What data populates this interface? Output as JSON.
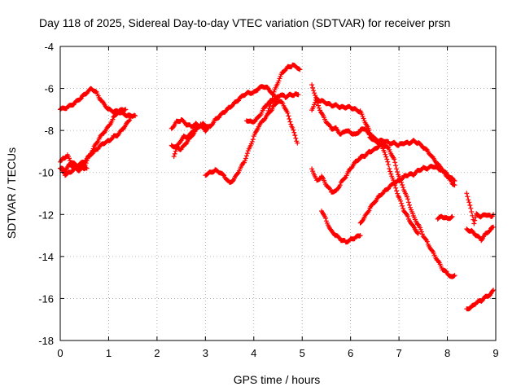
{
  "chart_data": {
    "type": "scatter",
    "title": "Day 118 of 2025, Sidereal Day-to-day VTEC variation (SDTVAR) for receiver prsn",
    "xlabel": "GPS time / hours",
    "ylabel": "SDTVAR / TECUs",
    "xlim": [
      0,
      9
    ],
    "ylim": [
      -18,
      -4
    ],
    "x_ticks": [
      "0",
      "1",
      "2",
      "3",
      "4",
      "5",
      "6",
      "7",
      "8",
      "9"
    ],
    "y_ticks": [
      "-18",
      "-16",
      "-14",
      "-12",
      "-10",
      "-8",
      "-6",
      "-4"
    ],
    "grid": true,
    "marker": "plus",
    "color": "#ff0000",
    "series": [
      {
        "name": "s1",
        "x": [
          0,
          0.15,
          0.3,
          0.45,
          0.55,
          0.65,
          0.75,
          0.85,
          1.0,
          1.1,
          1.2,
          1.3,
          1.4,
          1.5,
          1.55
        ],
        "y": [
          -7.0,
          -6.9,
          -6.7,
          -6.4,
          -6.2,
          -6.0,
          -6.2,
          -6.6,
          -7.0,
          -7.1,
          -7.1,
          -7.2,
          -7.3,
          -7.3,
          -7.3
        ]
      },
      {
        "name": "s2",
        "x": [
          0,
          0.1,
          0.2,
          0.3,
          0.4,
          0.5,
          0.6,
          0.7,
          0.8,
          0.9,
          1.0,
          1.1,
          1.2,
          1.3,
          1.35
        ],
        "y": [
          -9.8,
          -9.9,
          -9.6,
          -9.8,
          -9.9,
          -9.7,
          -9.2,
          -8.8,
          -8.4,
          -8.1,
          -7.8,
          -7.4,
          -7.1,
          -7.0,
          -7.0
        ]
      },
      {
        "name": "s3",
        "x": [
          0,
          0.08,
          0.15,
          0.22,
          0.3,
          0.4,
          0.5,
          0.55
        ],
        "y": [
          -9.5,
          -9.3,
          -9.2,
          -9.5,
          -9.6,
          -9.7,
          -9.8,
          -9.8
        ]
      },
      {
        "name": "s4",
        "x": [
          0,
          0.1,
          0.2,
          0.3,
          0.4,
          0.5,
          0.6,
          0.7,
          0.8,
          0.9,
          1.0,
          1.1,
          1.2,
          1.3,
          1.4,
          1.45
        ],
        "y": [
          -9.8,
          -10.1,
          -10.0,
          -9.8,
          -9.6,
          -9.5,
          -9.2,
          -9.0,
          -8.8,
          -8.6,
          -8.5,
          -8.3,
          -8.2,
          -7.9,
          -7.6,
          -7.4
        ]
      },
      {
        "name": "s5",
        "x": [
          2.3,
          2.4,
          2.5,
          2.6,
          2.7,
          2.8,
          2.9,
          3.0,
          3.1,
          3.2,
          3.3,
          3.4,
          3.5,
          3.6,
          3.7,
          3.8,
          3.9,
          4.0,
          4.1,
          4.2,
          4.3,
          4.4,
          4.5
        ],
        "y": [
          -7.9,
          -7.6,
          -7.5,
          -7.7,
          -7.8,
          -7.7,
          -7.8,
          -8.0,
          -7.8,
          -7.5,
          -7.3,
          -7.1,
          -6.9,
          -6.7,
          -6.5,
          -6.3,
          -6.2,
          -6.2,
          -6.0,
          -5.9,
          -6.0,
          -6.3,
          -6.6
        ]
      },
      {
        "name": "s6",
        "x": [
          2.35,
          2.45,
          2.55,
          2.65,
          2.75,
          2.85,
          2.95,
          3.05
        ],
        "y": [
          -9.2,
          -8.6,
          -8.3,
          -8.3,
          -8.0,
          -7.8,
          -7.7,
          -7.8
        ]
      },
      {
        "name": "s7",
        "x": [
          2.3,
          2.4,
          2.5,
          2.6,
          2.7,
          2.8,
          2.9
        ],
        "y": [
          -8.7,
          -8.8,
          -8.9,
          -8.6,
          -8.3,
          -8.0,
          -7.7
        ]
      },
      {
        "name": "s8",
        "x": [
          3.0,
          3.1,
          3.2,
          3.3,
          3.4,
          3.5,
          3.6,
          3.7,
          3.8,
          3.9,
          4.0,
          4.1,
          4.2,
          4.3,
          4.4,
          4.5,
          4.6,
          4.7,
          4.8,
          4.9
        ],
        "y": [
          -10.1,
          -10.0,
          -9.9,
          -10.0,
          -10.2,
          -10.5,
          -10.3,
          -9.9,
          -9.5,
          -8.9,
          -8.3,
          -7.8,
          -7.5,
          -7.2,
          -6.9,
          -6.6,
          -6.7,
          -7.2,
          -7.9,
          -8.6
        ]
      },
      {
        "name": "s9",
        "x": [
          3.85,
          3.95,
          4.05,
          4.15,
          4.25,
          4.35,
          4.45,
          4.55,
          4.65,
          4.75,
          4.85,
          4.92
        ],
        "y": [
          -7.5,
          -7.6,
          -7.5,
          -7.2,
          -6.8,
          -6.6,
          -6.5,
          -6.3,
          -6.4,
          -6.3,
          -6.3,
          -6.3
        ]
      },
      {
        "name": "s10",
        "x": [
          4.3,
          4.4,
          4.5,
          4.6,
          4.7,
          4.8,
          4.9,
          4.95
        ],
        "y": [
          -7.1,
          -6.3,
          -5.7,
          -5.2,
          -5.0,
          -4.9,
          -5.0,
          -5.1
        ]
      },
      {
        "name": "s11",
        "x": [
          5.2,
          5.3,
          5.4,
          5.5,
          5.6,
          5.7,
          5.8,
          5.9,
          6.0,
          6.1,
          6.2,
          6.3,
          6.4,
          6.5,
          6.6,
          6.7,
          6.8,
          6.9,
          7.0,
          7.1,
          7.2,
          7.3,
          7.4,
          7.5,
          7.6,
          7.7,
          7.8,
          7.9,
          8.0,
          8.1,
          8.15
        ],
        "y": [
          -7.0,
          -6.5,
          -6.6,
          -6.7,
          -6.8,
          -6.8,
          -6.9,
          -6.9,
          -6.9,
          -7.0,
          -7.1,
          -7.6,
          -8.1,
          -8.4,
          -8.5,
          -8.5,
          -8.6,
          -8.6,
          -8.7,
          -8.6,
          -8.6,
          -8.5,
          -8.6,
          -8.8,
          -9.0,
          -9.3,
          -9.6,
          -9.9,
          -10.1,
          -10.3,
          -10.4
        ]
      },
      {
        "name": "s12",
        "x": [
          5.2,
          5.3,
          5.4,
          5.5,
          5.6,
          5.7,
          5.8,
          5.9,
          6.0,
          6.1,
          6.2,
          6.3,
          6.4,
          6.5,
          6.6,
          6.7,
          6.8,
          6.9,
          7.0,
          7.1,
          7.2,
          7.3,
          7.4
        ],
        "y": [
          -5.8,
          -6.6,
          -7.2,
          -7.6,
          -7.9,
          -7.9,
          -8.2,
          -8.0,
          -8.1,
          -8.2,
          -8.0,
          -7.9,
          -8.3,
          -8.5,
          -8.6,
          -9.0,
          -9.8,
          -10.5,
          -11.2,
          -11.8,
          -12.2,
          -12.6,
          -12.9
        ]
      },
      {
        "name": "s13",
        "x": [
          5.2,
          5.3,
          5.4,
          5.5,
          5.6,
          5.7,
          5.8,
          5.9,
          6.0,
          6.1,
          6.2,
          6.3,
          6.4,
          6.5,
          6.6,
          6.7,
          6.8,
          6.9,
          7.0,
          7.1,
          7.2,
          7.3,
          7.4,
          7.5,
          7.6,
          7.7,
          7.8,
          7.9,
          8.0,
          8.1,
          8.15
        ],
        "y": [
          -9.8,
          -10.4,
          -10.2,
          -10.6,
          -10.9,
          -10.9,
          -10.5,
          -10.2,
          -9.8,
          -9.5,
          -9.3,
          -9.2,
          -9.0,
          -8.9,
          -8.7,
          -8.7,
          -8.9,
          -9.4,
          -10.2,
          -10.8,
          -11.4,
          -12.1,
          -12.5,
          -13.0,
          -13.4,
          -13.8,
          -14.2,
          -14.6,
          -14.8,
          -15.0,
          -14.9
        ]
      },
      {
        "name": "s14",
        "x": [
          5.4,
          5.5,
          5.6,
          5.7,
          5.8,
          5.9,
          6.0,
          6.1,
          6.2
        ],
        "y": [
          -11.8,
          -12.3,
          -12.8,
          -13.0,
          -13.2,
          -13.3,
          -13.2,
          -13.1,
          -13.0
        ]
      },
      {
        "name": "s15",
        "x": [
          6.2,
          6.3,
          6.4,
          6.5,
          6.6,
          6.7,
          6.8,
          6.9,
          7.0,
          7.1,
          7.2,
          7.3,
          7.4,
          7.5,
          7.6,
          7.7,
          7.8,
          7.9,
          8.0,
          8.1,
          8.15
        ],
        "y": [
          -12.4,
          -12.1,
          -11.7,
          -11.4,
          -11.1,
          -10.9,
          -10.7,
          -10.5,
          -10.4,
          -10.2,
          -10.1,
          -10.1,
          -9.9,
          -9.8,
          -9.8,
          -9.7,
          -9.8,
          -9.9,
          -10.2,
          -10.5,
          -10.6
        ]
      },
      {
        "name": "s16",
        "x": [
          7.8,
          7.9,
          8.0,
          8.1
        ],
        "y": [
          -12.2,
          -12.1,
          -12.2,
          -12.1
        ]
      },
      {
        "name": "s17",
        "x": [
          8.4,
          8.5,
          8.6,
          8.7,
          8.8,
          8.9,
          8.95
        ],
        "y": [
          -16.5,
          -16.4,
          -16.2,
          -16.1,
          -15.9,
          -15.8,
          -15.6
        ]
      },
      {
        "name": "s18",
        "x": [
          8.4,
          8.45,
          8.5,
          8.55,
          8.6,
          8.7,
          8.8,
          8.9,
          8.95
        ],
        "y": [
          -11.0,
          -11.4,
          -11.9,
          -12.4,
          -12.0,
          -12.1,
          -12.0,
          -12.1,
          -12.0
        ]
      },
      {
        "name": "s19",
        "x": [
          8.4,
          8.5,
          8.6,
          8.7,
          8.8,
          8.9,
          8.95
        ],
        "y": [
          -12.7,
          -12.8,
          -13.0,
          -13.2,
          -12.9,
          -12.7,
          -12.6
        ]
      }
    ]
  }
}
